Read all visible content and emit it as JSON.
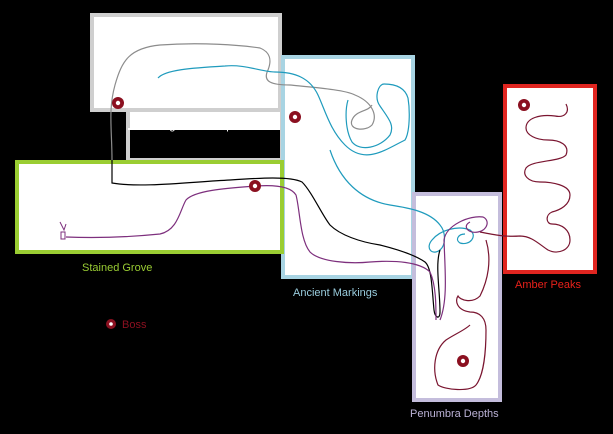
{
  "map": {
    "regions": [
      {
        "id": "enlightened-capital",
        "label": "Enlightened Capital",
        "color": "#d9d9d9",
        "label_color": "#ffffff"
      },
      {
        "id": "stained-grove",
        "label": "Stained Grove",
        "color": "#99cc33",
        "label_color": "#99cc33"
      },
      {
        "id": "ancient-markings",
        "label": "Ancient Markings",
        "color": "#99ccdd",
        "label_color": "#99ccdd"
      },
      {
        "id": "penumbra-depths",
        "label": "Penumbra Depths",
        "color": "#bbb2d6",
        "label_color": "#bbb2d6"
      },
      {
        "id": "amber-peaks",
        "label": "Amber Peaks",
        "color": "#e8201a",
        "label_color": "#e8201a"
      }
    ],
    "legend": {
      "boss_label": "Boss",
      "boss_color": "#8b1020"
    },
    "boss_count": 5,
    "path_colors": {
      "grey": "#8c8c8c",
      "cyan": "#1f9bbd",
      "black": "#000000",
      "purple": "#7d2f7d",
      "maroon": "#7a1530"
    }
  }
}
